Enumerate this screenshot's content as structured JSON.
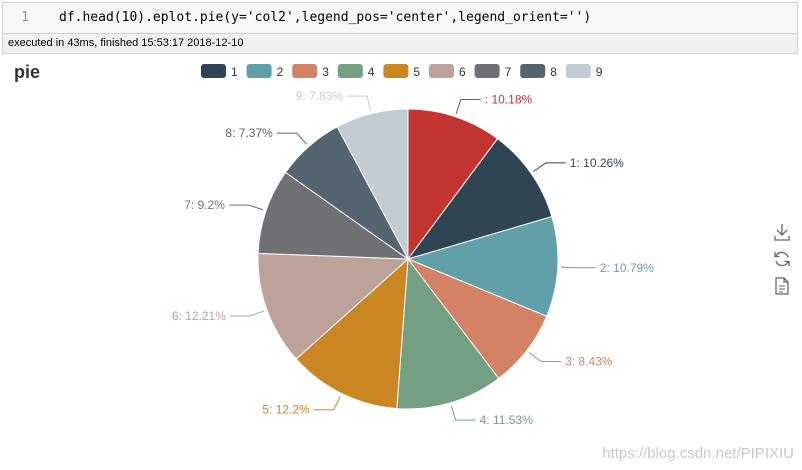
{
  "cell": {
    "line_number": "1",
    "code": "df.head(10).eplot.pie(y='col2',legend_pos='center',legend_orient='')",
    "status": "executed in 43ms, finished 15:53:17 2018-12-10"
  },
  "watermark": "https://blog.csdn.net/PIPIXIU",
  "chart_data": {
    "type": "pie",
    "title": "pie",
    "legend_position": "top-center",
    "legend": [
      "1",
      "2",
      "3",
      "4",
      "5",
      "6",
      "7",
      "8",
      "9"
    ],
    "slices": [
      {
        "name": "",
        "label": ": 10.18%",
        "value": 10.18,
        "color": "#c23531"
      },
      {
        "name": "1",
        "label": "1: 10.26%",
        "value": 10.26,
        "color": "#2f4554"
      },
      {
        "name": "2",
        "label": "2: 10.79%",
        "value": 10.79,
        "color": "#61a0a8"
      },
      {
        "name": "3",
        "label": "3: 8.43%",
        "value": 8.43,
        "color": "#d48265"
      },
      {
        "name": "4",
        "label": "4: 11.53%",
        "value": 11.53,
        "color": "#749f83"
      },
      {
        "name": "5",
        "label": "5: 12.2%",
        "value": 12.2,
        "color": "#ca8622"
      },
      {
        "name": "6",
        "label": "6: 12.21%",
        "value": 12.21,
        "color": "#bda29a"
      },
      {
        "name": "7",
        "label": "7: 9.2%",
        "value": 9.2,
        "color": "#6e7074"
      },
      {
        "name": "8",
        "label": "8: 7.37%",
        "value": 7.37,
        "color": "#546570"
      },
      {
        "name": "9",
        "label": "9: 7.83%",
        "value": 7.83,
        "color": "#c4ccd3"
      }
    ]
  },
  "toolbox": {
    "icons": [
      "download-icon",
      "refresh-icon",
      "data-view-icon"
    ]
  }
}
